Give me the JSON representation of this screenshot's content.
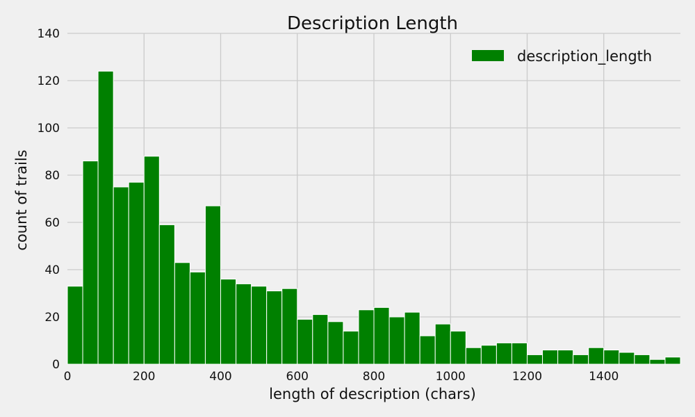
{
  "chart_data": {
    "type": "bar",
    "title": "Description Length",
    "xlabel": "length of description (chars)",
    "ylabel": "count of trails",
    "xlim": [
      0,
      1600
    ],
    "ylim": [
      0,
      140
    ],
    "xticks": [
      0,
      200,
      400,
      600,
      800,
      1000,
      1200,
      1400
    ],
    "yticks": [
      0,
      20,
      40,
      60,
      80,
      100,
      120,
      140
    ],
    "grid": true,
    "legend_position": "top-right",
    "bar_color": "#008000",
    "series": [
      {
        "name": "description_length",
        "bin_width": 40,
        "bin_start": 0,
        "values": [
          33,
          86,
          124,
          75,
          77,
          88,
          59,
          43,
          39,
          67,
          36,
          34,
          33,
          31,
          32,
          19,
          21,
          18,
          14,
          23,
          24,
          20,
          22,
          12,
          17,
          14,
          7,
          8,
          9,
          9,
          4,
          6,
          6,
          4,
          7,
          6,
          5,
          4,
          2,
          3
        ]
      }
    ]
  }
}
